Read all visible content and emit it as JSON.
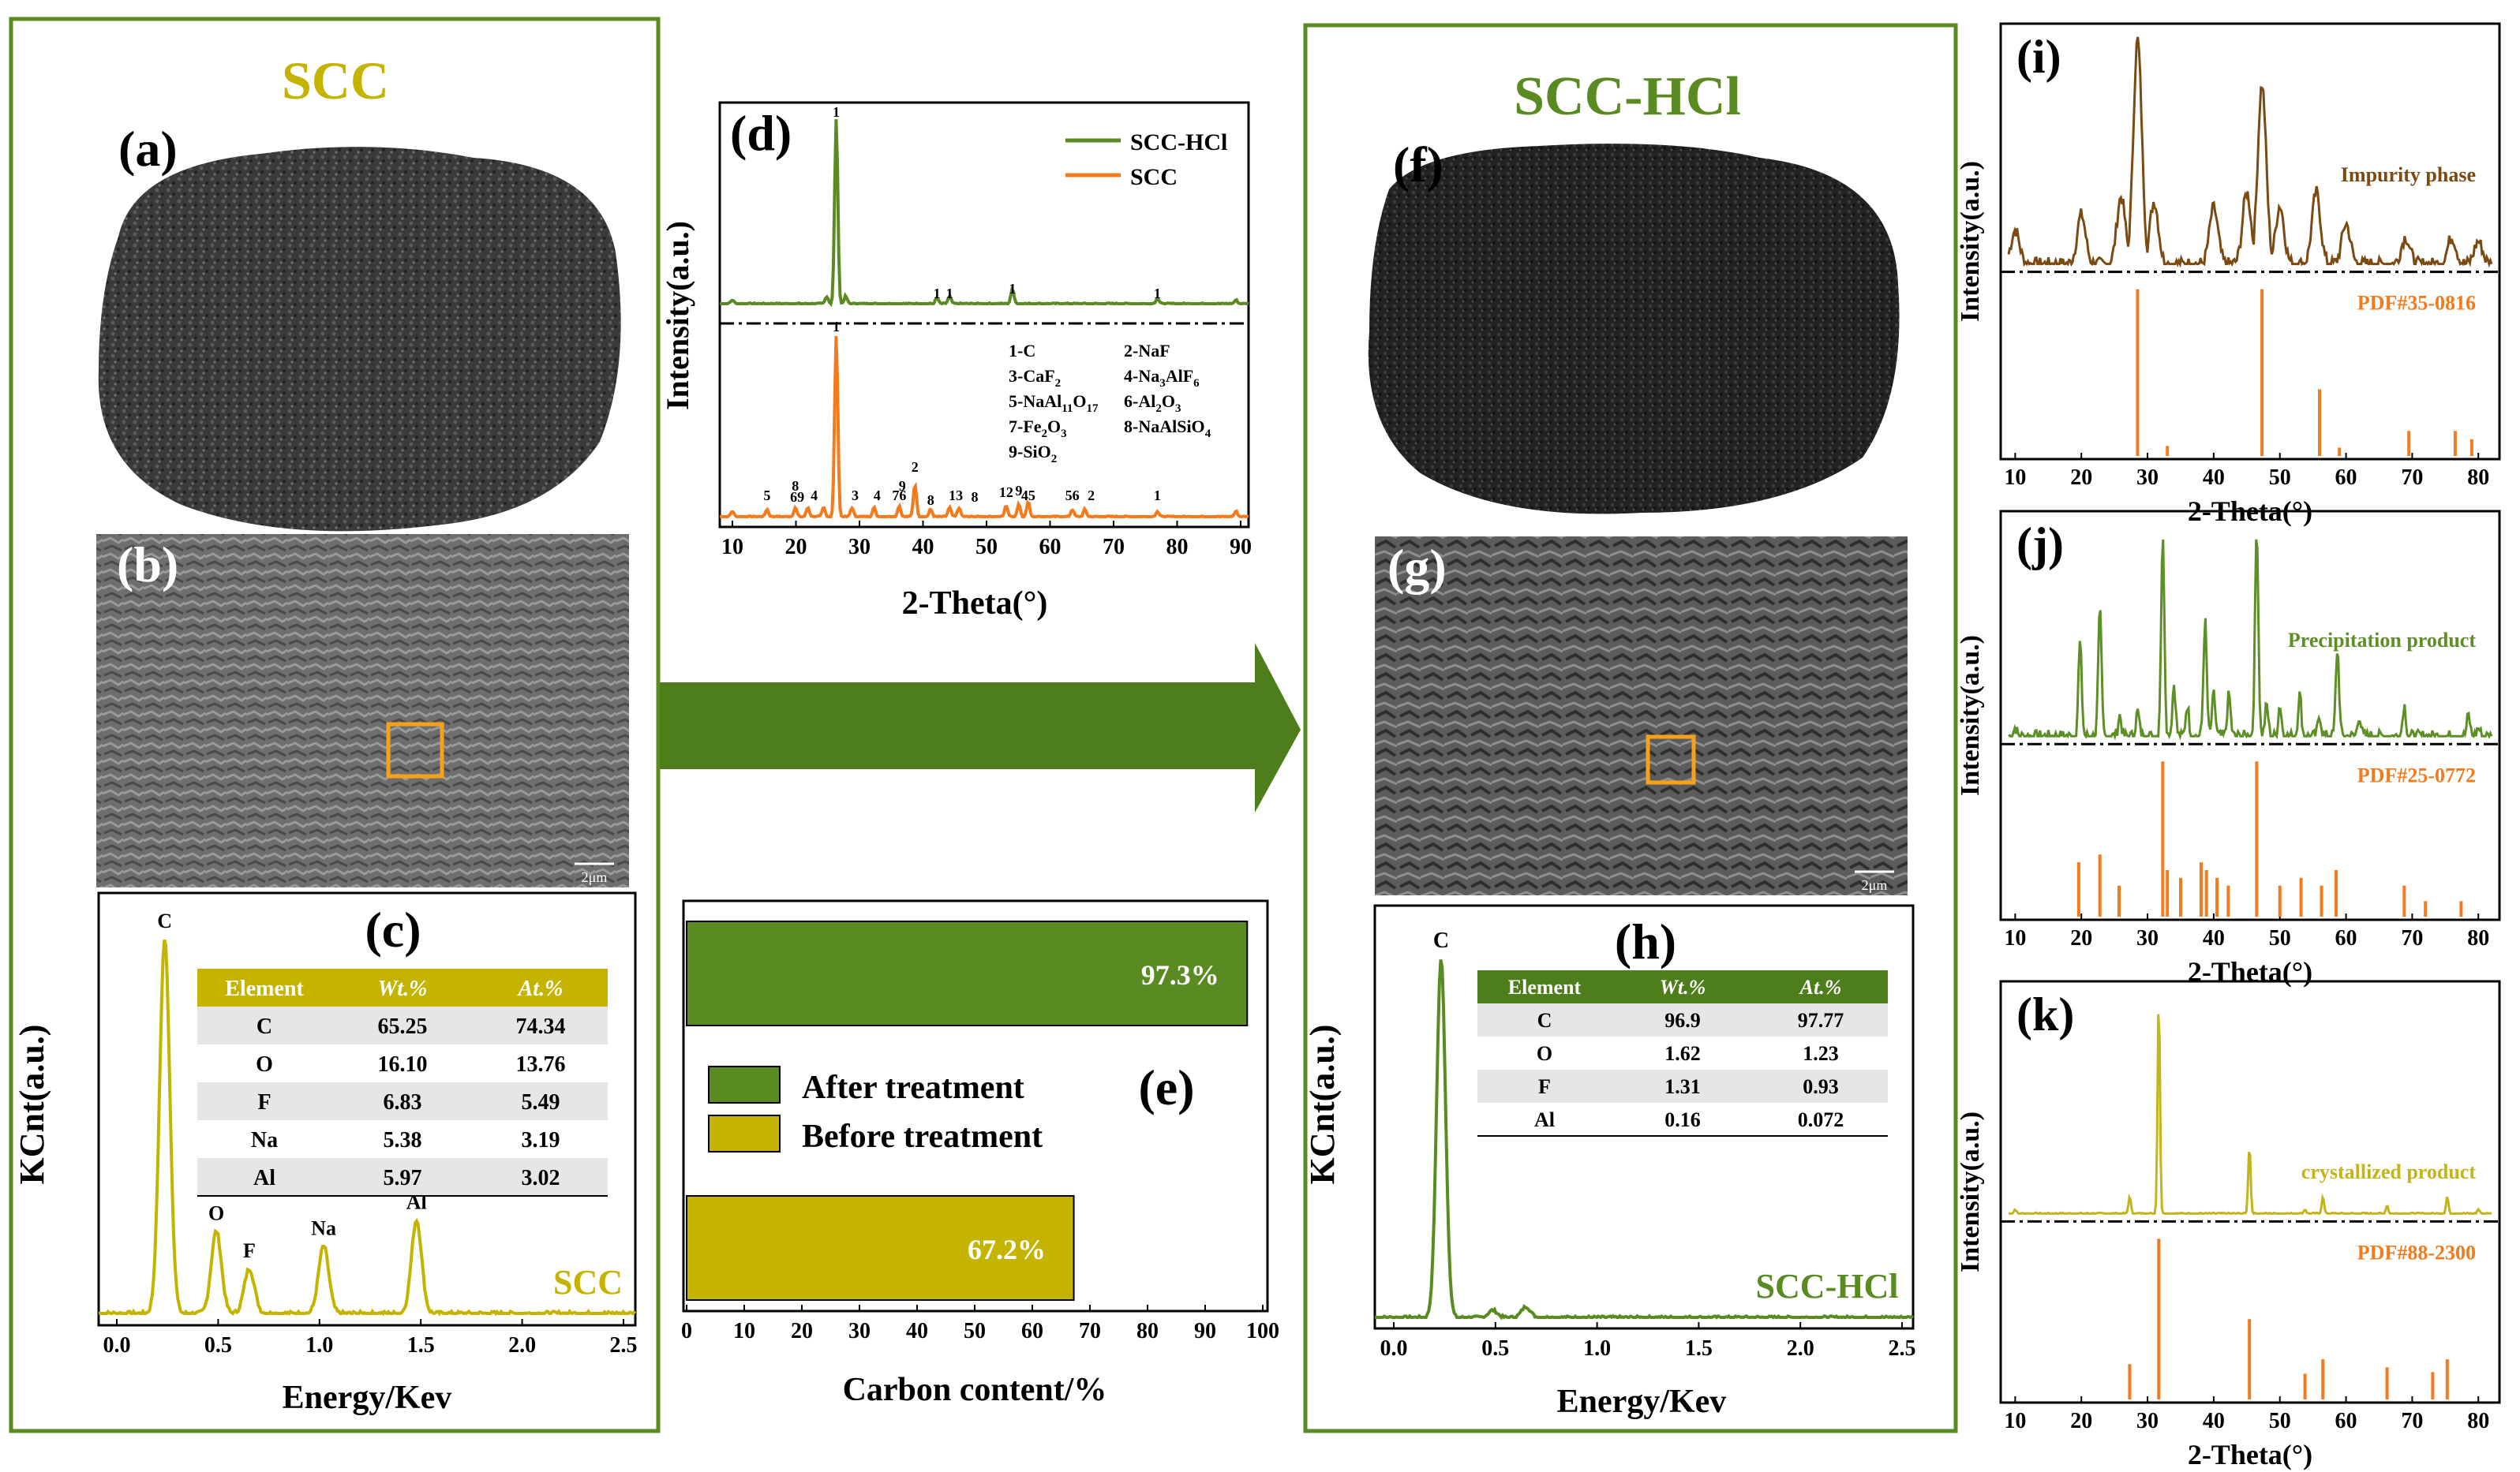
{
  "left_panel": {
    "title": "SCC",
    "label_a": "(a)",
    "label_b": "(b)",
    "label_c": "(c)",
    "scale_bar": "2μm",
    "eds": {
      "ylabel": "KCnt(a.u.)",
      "xlabel": "Energy/Kev",
      "xticks": [
        "0.0",
        "0.5",
        "1.0",
        "1.5",
        "2.0",
        "2.5"
      ],
      "peak_labels": [
        "C",
        "O",
        "F",
        "Na",
        "Al"
      ],
      "series_label": "SCC",
      "table": {
        "headers": [
          "Element",
          "Wt.%",
          "At.%"
        ],
        "rows": [
          [
            "C",
            "65.25",
            "74.34"
          ],
          [
            "O",
            "16.10",
            "13.76"
          ],
          [
            "F",
            "6.83",
            "5.49"
          ],
          [
            "Na",
            "5.38",
            "3.19"
          ],
          [
            "Al",
            "5.97",
            "3.02"
          ]
        ]
      }
    }
  },
  "xrd_d": {
    "label": "(d)",
    "ylabel": "Intensity(a.u.)",
    "xlabel": "2-Theta(°)",
    "xticks": [
      "10",
      "20",
      "30",
      "40",
      "50",
      "60",
      "70",
      "80",
      "90"
    ],
    "legend": [
      "SCC-HCl",
      "SCC"
    ],
    "top_peak_labels": [
      "1",
      "1",
      "1",
      "1",
      "1"
    ],
    "bottom_peak_labels": [
      "1",
      "5",
      "8",
      "69",
      "4",
      "3",
      "4",
      "76",
      "9",
      "2",
      "8",
      "13",
      "8",
      "12",
      "9",
      "45",
      "56",
      "2",
      "1"
    ],
    "phase_list": [
      "1-C",
      "2-NaF",
      "3-CaF",
      "4-Na",
      "5-NaAl",
      "6-Al",
      "7-Fe",
      "8-NaAlSiO",
      "9-SiO"
    ],
    "phase_sub": [
      "2",
      "3",
      "11",
      "17",
      "2",
      "3",
      "2",
      "3",
      "4",
      "2",
      "6"
    ],
    "phase_tail": [
      "AlF"
    ]
  },
  "bar_e": {
    "label": "(e)",
    "xlabel": "Carbon content/%",
    "xticks": [
      "0",
      "10",
      "20",
      "30",
      "40",
      "50",
      "60",
      "70",
      "80",
      "90",
      "100"
    ],
    "legend": [
      "After treatment",
      "Before treatment"
    ],
    "bar_labels": [
      "97.3%",
      "67.2%"
    ]
  },
  "right_panel": {
    "title": "SCC-HCl",
    "label_f": "(f)",
    "label_g": "(g)",
    "label_h": "(h)",
    "scale_bar": "2μm",
    "eds": {
      "ylabel": "KCnt(a.u.)",
      "xlabel": "Energy/Kev",
      "xticks": [
        "0.0",
        "0.5",
        "1.0",
        "1.5",
        "2.0",
        "2.5"
      ],
      "peak_label": "C",
      "series_label": "SCC-HCl",
      "table": {
        "headers": [
          "Element",
          "Wt.%",
          "At.%"
        ],
        "rows": [
          [
            "C",
            "96.9",
            "97.77"
          ],
          [
            "O",
            "1.62",
            "1.23"
          ],
          [
            "F",
            "1.31",
            "0.93"
          ],
          [
            "Al",
            "0.16",
            "0.072"
          ]
        ]
      }
    }
  },
  "xrd_side": {
    "ylabel": "Intensity(a.u.)",
    "xlabel": "2-Theta(°)",
    "xticks": [
      "10",
      "20",
      "30",
      "40",
      "50",
      "60",
      "70",
      "80"
    ],
    "panels": [
      {
        "label": "(i)",
        "name": "Impurity phase",
        "pdf": "PDF#35-0816",
        "color": "#7a4a12"
      },
      {
        "label": "(j)",
        "name": "Precipitation product",
        "pdf": "PDF#25-0772",
        "color": "#5e8f26"
      },
      {
        "label": "(k)",
        "name": "crystallized product",
        "pdf": "PDF#88-2300",
        "color": "#c4b419"
      }
    ]
  },
  "chart_data": [
    {
      "type": "line",
      "title": "(d)",
      "xlabel": "2-Theta(°)",
      "ylabel": "Intensity(a.u.)",
      "xlim": [
        10,
        90
      ],
      "series": [
        {
          "name": "SCC-HCl",
          "x": [
            10,
            25,
            26.5,
            28,
            42.5,
            44.5,
            54.5,
            77.5,
            90
          ],
          "y": [
            2,
            4,
            100,
            4,
            3,
            4,
            8,
            3,
            2
          ]
        },
        {
          "name": "SCC",
          "x": [
            10,
            15.5,
            20,
            22,
            24.5,
            26.5,
            29,
            32.5,
            36.5,
            39,
            41.5,
            44.5,
            46,
            53.5,
            55.5,
            57,
            64,
            66,
            77.5,
            90
          ],
          "y": [
            3,
            4,
            5,
            5,
            5,
            100,
            5,
            5,
            6,
            18,
            4,
            5,
            5,
            6,
            7,
            8,
            4,
            4,
            3,
            3
          ]
        }
      ]
    },
    {
      "type": "bar",
      "title": "(e)",
      "xlabel": "Carbon content/%",
      "categories": [
        "After treatment",
        "Before treatment"
      ],
      "values": [
        97.3,
        67.2
      ],
      "xlim": [
        0,
        100
      ],
      "colors": [
        "#5a8a22",
        "#c4b400"
      ]
    },
    {
      "type": "line",
      "title": "(c)",
      "xlabel": "Energy/Kev",
      "ylabel": "KCnt(a.u.)",
      "xlim": [
        -0.05,
        2.5
      ],
      "series": [
        {
          "name": "SCC",
          "x": [
            0,
            0.1,
            0.2,
            0.27,
            0.35,
            0.45,
            0.52,
            0.6,
            0.68,
            0.8,
            0.95,
            1.04,
            1.15,
            1.35,
            1.49,
            1.6,
            1.75,
            2.0,
            2.5
          ],
          "y": [
            2,
            3,
            5,
            100,
            8,
            5,
            22,
            8,
            12,
            4,
            4,
            18,
            4,
            4,
            25,
            4,
            3,
            2,
            1
          ]
        }
      ]
    },
    {
      "type": "line",
      "title": "(h)",
      "xlabel": "Energy/Kev",
      "ylabel": "KCnt(a.u.)",
      "xlim": [
        -0.05,
        2.5
      ],
      "series": [
        {
          "name": "SCC-HCl",
          "x": [
            0,
            0.1,
            0.2,
            0.27,
            0.35,
            0.5,
            0.65,
            0.8,
            1.0,
            2.5
          ],
          "y": [
            1,
            2,
            4,
            100,
            3,
            2,
            2,
            1,
            1,
            0
          ]
        }
      ]
    },
    {
      "type": "line",
      "title": "(i)",
      "xlabel": "2-Theta(°)",
      "ylabel": "Intensity(a.u.)",
      "xlim": [
        10,
        80
      ],
      "series": [
        {
          "name": "Impurity phase",
          "x": [
            10,
            20,
            26,
            28.5,
            31,
            40,
            45,
            47.3,
            50,
            55.5,
            60,
            69,
            76,
            80
          ],
          "y": [
            15,
            22,
            30,
            100,
            28,
            25,
            32,
            80,
            26,
            32,
            18,
            12,
            12,
            10
          ]
        }
      ],
      "reference": {
        "name": "PDF#35-0816",
        "x": [
          28.5,
          33,
          47.3,
          56,
          59,
          69.5,
          76.5,
          79
        ],
        "y": [
          100,
          6,
          100,
          40,
          5,
          15,
          15,
          10
        ]
      }
    },
    {
      "type": "line",
      "title": "(j)",
      "xlabel": "2-Theta(°)",
      "ylabel": "Intensity(a.u.)",
      "xlim": [
        10,
        80
      ],
      "series": [
        {
          "name": "Precipitation product",
          "x": [
            10,
            19.8,
            22.8,
            25.8,
            28.5,
            32.3,
            34,
            36,
            38.7,
            40,
            42.3,
            46.5,
            48,
            50,
            53,
            56,
            58.7,
            62,
            68.8,
            78.5,
            80
          ],
          "y": [
            4,
            45,
            60,
            10,
            12,
            95,
            25,
            15,
            55,
            20,
            20,
            100,
            15,
            15,
            20,
            10,
            42,
            10,
            15,
            10,
            4
          ]
        }
      ],
      "reference": {
        "name": "PDF#25-0772",
        "x": [
          19.6,
          22.8,
          25.7,
          32.3,
          33,
          35,
          38.1,
          38.9,
          40.5,
          42.2,
          46.5,
          50,
          53.2,
          56.3,
          58.5,
          68.8,
          72,
          77.4
        ],
        "y": [
          35,
          40,
          20,
          100,
          30,
          25,
          35,
          30,
          25,
          20,
          100,
          20,
          25,
          20,
          30,
          20,
          10,
          10
        ]
      }
    },
    {
      "type": "line",
      "title": "(k)",
      "xlabel": "2-Theta(°)",
      "ylabel": "Intensity(a.u.)",
      "xlim": [
        10,
        80
      ],
      "series": [
        {
          "name": "crystallized product",
          "x": [
            10,
            27.3,
            31.7,
            45.4,
            53.8,
            56.5,
            66.2,
            75.3,
            80
          ],
          "y": [
            2,
            8,
            100,
            32,
            2,
            8,
            4,
            8,
            2
          ]
        }
      ],
      "reference": {
        "name": "PDF#88-2300",
        "x": [
          27.3,
          31.7,
          45.4,
          53.8,
          56.5,
          66.2,
          73.1,
          75.3
        ],
        "y": [
          22,
          100,
          50,
          16,
          25,
          20,
          17,
          25
        ]
      }
    }
  ]
}
